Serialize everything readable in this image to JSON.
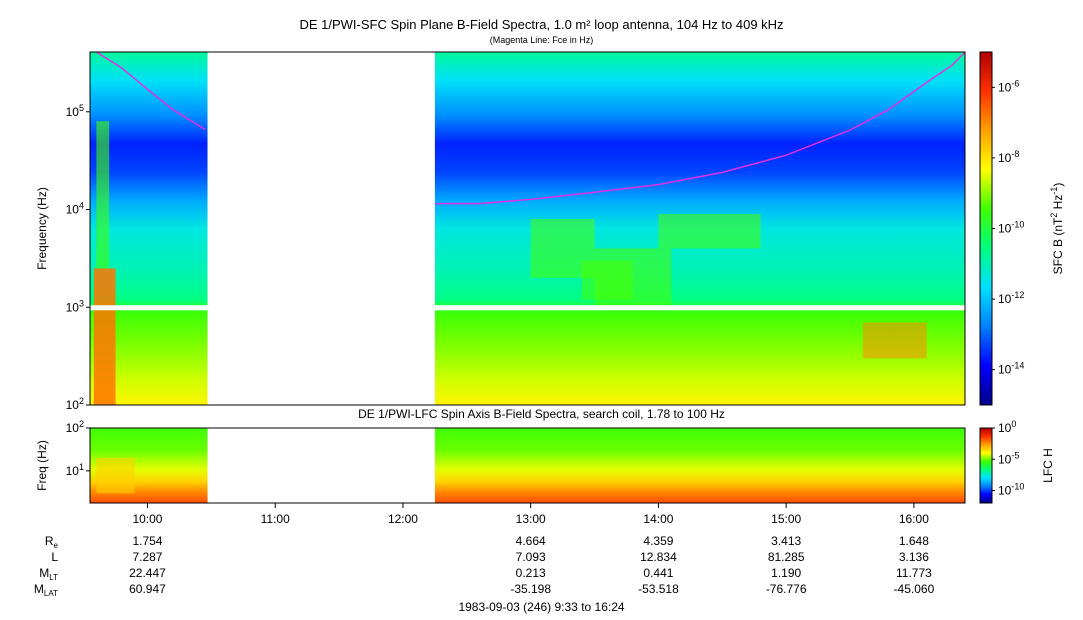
{
  "titles": {
    "main": "DE 1/PWI-SFC  Spin Plane B-Field Spectra, 1.0 m² loop antenna, 104 Hz to 409 kHz",
    "sub": "(Magenta Line: Fce in Hz)",
    "lower": "DE 1/PWI-LFC  Spin Axis B-Field Spectra, search coil, 1.78 to 100 Hz",
    "footer": "1983-09-03 (246) 9:33 to 16:24"
  },
  "colors": {
    "fce_line": "#e030e0",
    "colormap": [
      "#00008b",
      "#0000ff",
      "#0080ff",
      "#00e0ff",
      "#00ff80",
      "#40ff00",
      "#ffff00",
      "#ffa000",
      "#ff3000",
      "#b00000"
    ]
  },
  "chart_data": [
    {
      "type": "heatmap",
      "name": "SFC spectrogram",
      "ylabel": "Frequency (Hz)",
      "yscale": "log",
      "ylim": [
        100,
        409000
      ],
      "xlim_hours": [
        9.55,
        16.4
      ],
      "yticks": [
        {
          "v": 100,
          "label": "10",
          "sup": "2"
        },
        {
          "v": 1000,
          "label": "10",
          "sup": "3"
        },
        {
          "v": 10000,
          "label": "10",
          "sup": "4"
        },
        {
          "v": 100000,
          "label": "10",
          "sup": "5"
        }
      ],
      "data_gaps_hours": [
        [
          10.47,
          12.25
        ]
      ],
      "colorbar": {
        "label": "SFC B (nT",
        "label_sup1": "2",
        "label_mid": " Hz",
        "label_sup2": "-1",
        "label_end": ")",
        "scale": "log",
        "range": [
          1e-15,
          1e-05
        ],
        "ticks": [
          {
            "v": -6,
            "label": "10",
            "sup": "-6"
          },
          {
            "v": -8,
            "label": "10",
            "sup": "-8"
          },
          {
            "v": -10,
            "label": "10",
            "sup": "-10"
          },
          {
            "v": -12,
            "label": "10",
            "sup": "-12"
          },
          {
            "v": -14,
            "label": "10",
            "sup": "-14"
          }
        ]
      },
      "fce_line_hz": [
        {
          "t": 9.6,
          "f": 409000
        },
        {
          "t": 9.8,
          "f": 280000
        },
        {
          "t": 10.0,
          "f": 170000
        },
        {
          "t": 10.2,
          "f": 105000
        },
        {
          "t": 10.45,
          "f": 66000
        },
        {
          "t": 12.25,
          "f": 11500
        },
        {
          "t": 12.6,
          "f": 11500
        },
        {
          "t": 13.0,
          "f": 12700
        },
        {
          "t": 13.5,
          "f": 15000
        },
        {
          "t": 14.0,
          "f": 18000
        },
        {
          "t": 14.5,
          "f": 24000
        },
        {
          "t": 15.0,
          "f": 36000
        },
        {
          "t": 15.5,
          "f": 65000
        },
        {
          "t": 15.8,
          "f": 105000
        },
        {
          "t": 16.1,
          "f": 200000
        },
        {
          "t": 16.3,
          "f": 300000
        },
        {
          "t": 16.4,
          "f": 409000
        }
      ]
    },
    {
      "type": "heatmap",
      "name": "LFC spectrogram",
      "ylabel": "Freq (Hz)",
      "yscale": "log",
      "ylim": [
        1.78,
        100
      ],
      "yticks": [
        {
          "v": 10,
          "label": "10",
          "sup": "1"
        },
        {
          "v": 100,
          "label": "10",
          "sup": "2"
        }
      ],
      "data_gaps_hours": [
        [
          10.47,
          12.25
        ]
      ],
      "colorbar": {
        "label": "LFC H",
        "scale": "log",
        "range": [
          1e-12,
          1
        ],
        "ticks": [
          {
            "v": 0,
            "label": "10",
            "sup": "0"
          },
          {
            "v": -5,
            "label": "10",
            "sup": "-5"
          },
          {
            "v": -10,
            "label": "10",
            "sup": "-10"
          }
        ]
      }
    }
  ],
  "x_axis": {
    "ticks": [
      {
        "t": 10.0,
        "label": "10:00"
      },
      {
        "t": 11.0,
        "label": "11:00"
      },
      {
        "t": 12.0,
        "label": "12:00"
      },
      {
        "t": 13.0,
        "label": "13:00"
      },
      {
        "t": 14.0,
        "label": "14:00"
      },
      {
        "t": 15.0,
        "label": "15:00"
      },
      {
        "t": 16.0,
        "label": "16:00"
      }
    ]
  },
  "ephemeris": {
    "rows": [
      {
        "label": "R",
        "sub": "e",
        "values": [
          "1.754",
          "",
          "",
          "4.664",
          "4.359",
          "3.413",
          "1.648"
        ]
      },
      {
        "label": "L",
        "sub": "",
        "values": [
          "7.287",
          "",
          "",
          "7.093",
          "12.834",
          "81.285",
          "3.136"
        ]
      },
      {
        "label": "M",
        "sub": "LT",
        "values": [
          "22.447",
          "",
          "",
          "0.213",
          "0.441",
          "1.190",
          "11.773"
        ]
      },
      {
        "label": "M",
        "sub": "LAT",
        "values": [
          "60.947",
          "",
          "",
          "-35.198",
          "-53.518",
          "-76.776",
          "-45.060"
        ]
      }
    ]
  }
}
